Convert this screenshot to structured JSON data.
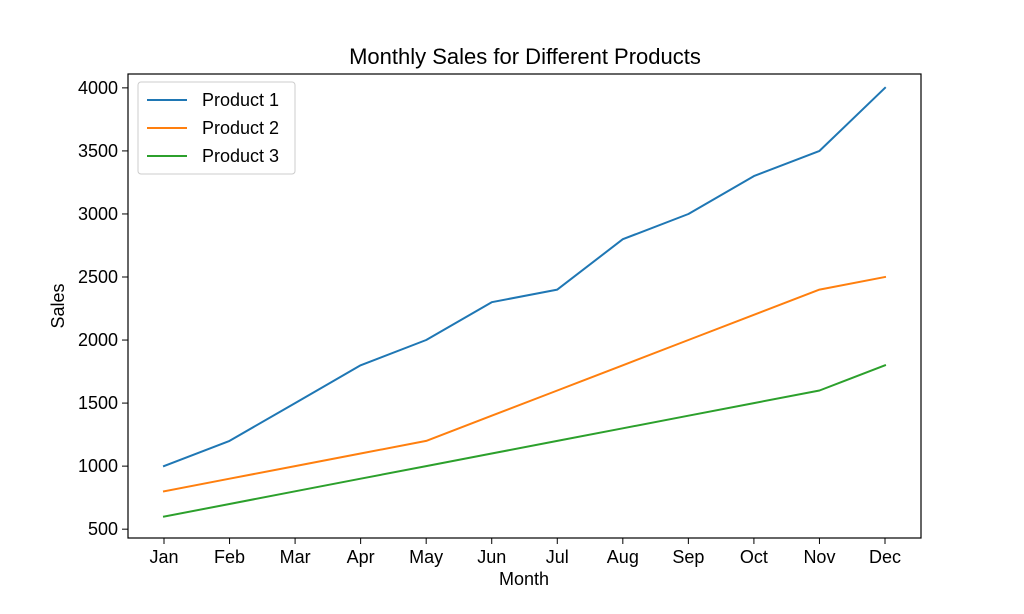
{
  "chart_data": {
    "type": "line",
    "title": "Monthly Sales for Different Products",
    "xlabel": "Month",
    "ylabel": "Sales",
    "categories": [
      "Jan",
      "Feb",
      "Mar",
      "Apr",
      "May",
      "Jun",
      "Jul",
      "Aug",
      "Sep",
      "Oct",
      "Nov",
      "Dec"
    ],
    "yticks": [
      500,
      1000,
      1500,
      2000,
      2500,
      3000,
      3500,
      4000
    ],
    "ylim": [
      430,
      4110
    ],
    "grid": false,
    "legend_position": "top-left",
    "series": [
      {
        "name": "Product 1",
        "color": "#1f77b4",
        "values": [
          1000,
          1200,
          1500,
          1800,
          2000,
          2300,
          2400,
          2800,
          3000,
          3300,
          3500,
          4000
        ]
      },
      {
        "name": "Product 2",
        "color": "#ff7f0e",
        "values": [
          800,
          900,
          1000,
          1100,
          1200,
          1400,
          1600,
          1800,
          2000,
          2200,
          2400,
          2500
        ]
      },
      {
        "name": "Product 3",
        "color": "#2ca02c",
        "values": [
          600,
          700,
          800,
          900,
          1000,
          1100,
          1200,
          1300,
          1400,
          1500,
          1600,
          1800
        ]
      }
    ]
  }
}
